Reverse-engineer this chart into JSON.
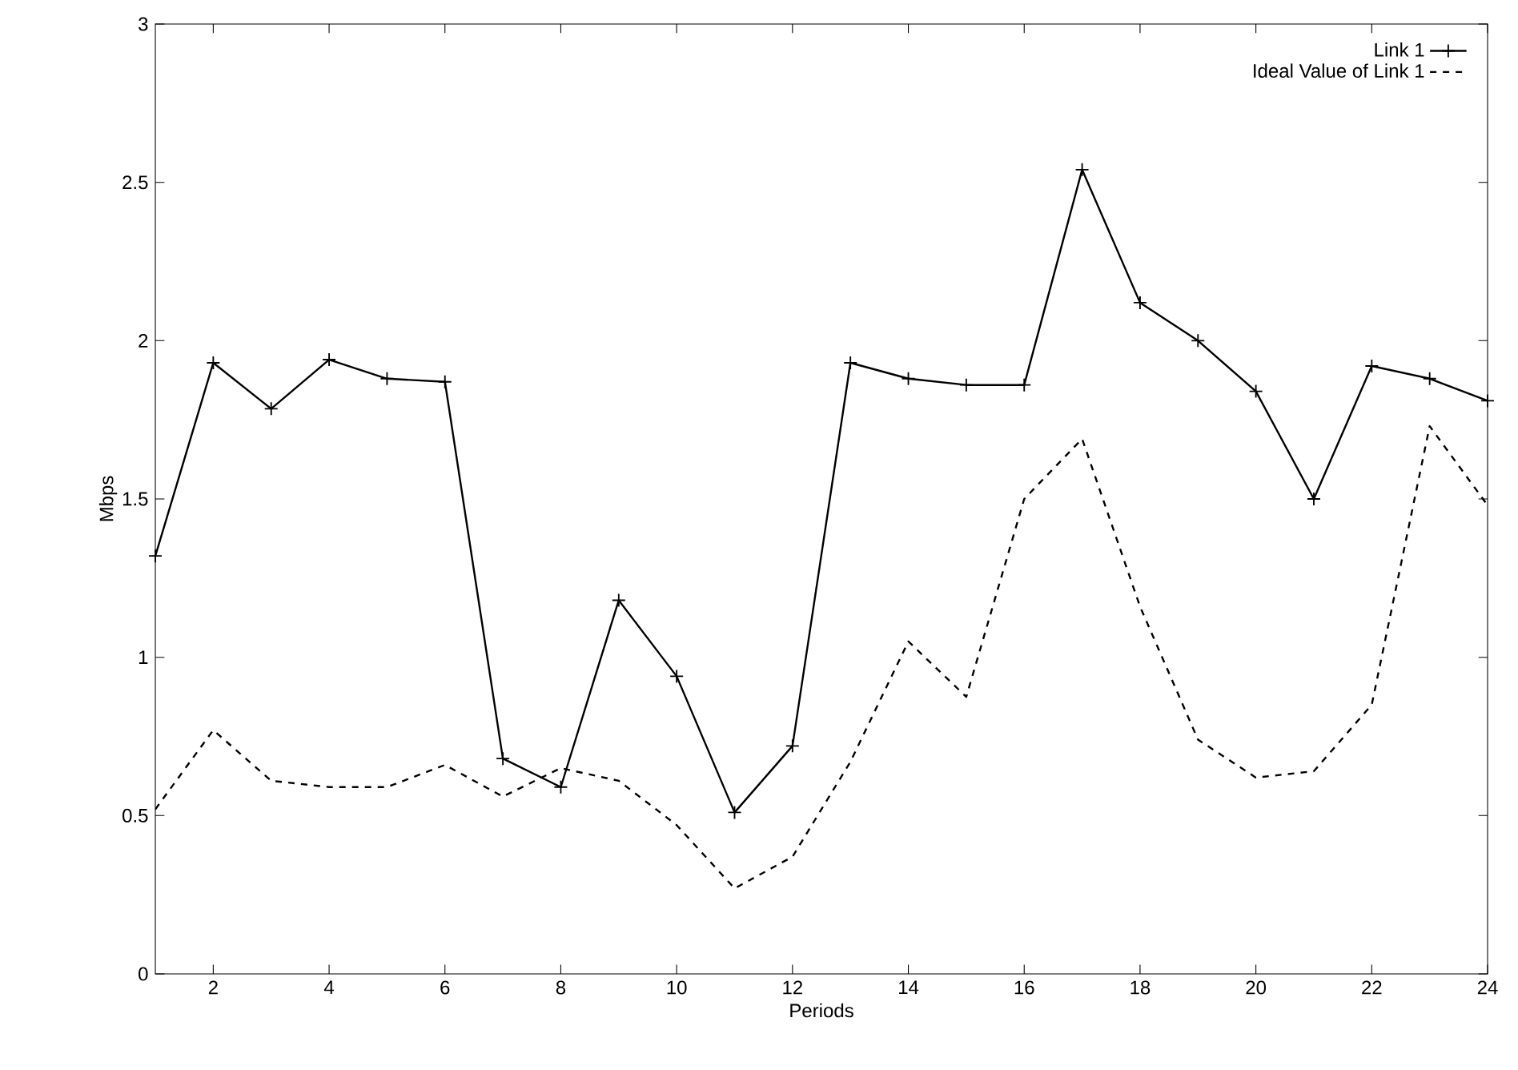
{
  "chart_data": {
    "type": "line",
    "xlabel": "Periods",
    "ylabel": "Mbps",
    "x": [
      1,
      2,
      3,
      4,
      5,
      6,
      7,
      8,
      9,
      10,
      11,
      12,
      13,
      14,
      15,
      16,
      17,
      18,
      19,
      20,
      21,
      22,
      23,
      24
    ],
    "series": [
      {
        "name": "Link 1",
        "color": "#000000",
        "marker": "cross",
        "line_style": "solid",
        "values": [
          1.32,
          1.93,
          1.785,
          1.94,
          1.88,
          1.87,
          0.68,
          0.59,
          1.18,
          0.94,
          0.51,
          0.72,
          1.93,
          1.88,
          1.86,
          1.86,
          2.54,
          2.12,
          2.0,
          1.84,
          1.5,
          1.92,
          1.88,
          1.81
        ]
      },
      {
        "name": "Ideal Value of Link 1",
        "color": "#000000",
        "marker": "none",
        "line_style": "dashed",
        "values": [
          0.52,
          0.77,
          0.61,
          0.59,
          0.59,
          0.66,
          0.56,
          0.65,
          0.61,
          0.47,
          0.27,
          0.37,
          0.67,
          1.05,
          0.875,
          1.5,
          1.69,
          1.16,
          0.74,
          0.62,
          0.64,
          0.85,
          1.73,
          1.48
        ]
      }
    ],
    "xlim": [
      1,
      24
    ],
    "xticks": [
      2,
      4,
      6,
      8,
      10,
      12,
      14,
      16,
      18,
      20,
      22,
      24
    ],
    "ylim": [
      0,
      3
    ],
    "yticks": [
      0,
      0.5,
      1,
      1.5,
      2,
      2.5,
      3
    ],
    "grid": false,
    "legend": "top right"
  }
}
